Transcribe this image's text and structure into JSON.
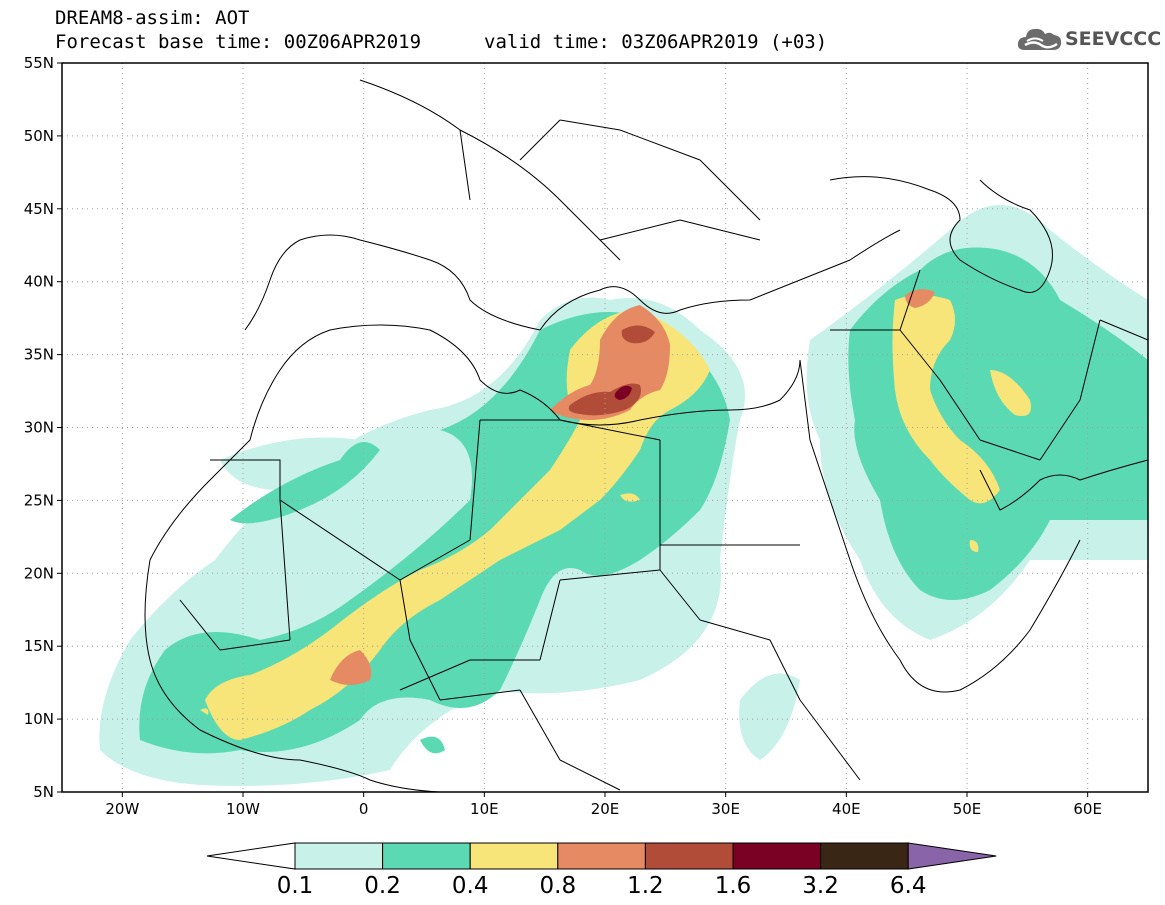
{
  "header": {
    "line1": "DREAM8-assim: AOT",
    "line2": "Forecast base time: 00Z06APR2019",
    "valid": "valid time: 03Z06APR2019 (+03)",
    "logo_text": "SEEVCCC",
    "logo_icon": "cloud-icon"
  },
  "map": {
    "lat_labels": [
      "55N",
      "50N",
      "45N",
      "40N",
      "35N",
      "30N",
      "25N",
      "20N",
      "15N",
      "10N",
      "5N"
    ],
    "lon_labels": [
      "20W",
      "10W",
      "0",
      "10E",
      "20E",
      "30E",
      "40E",
      "50E",
      "60E"
    ],
    "lat_range": [
      5,
      55
    ],
    "lon_range": [
      -25,
      65
    ],
    "grid": "dotted",
    "background": "#ffffff",
    "border_color": "#000000"
  },
  "colorbar": {
    "labels": [
      "0.1",
      "0.2",
      "0.4",
      "0.8",
      "1.2",
      "1.6",
      "3.2",
      "6.4"
    ],
    "colors": [
      "#ffffff",
      "#c8f1ea",
      "#5ad9b2",
      "#f7e57a",
      "#e68a64",
      "#b04c38",
      "#7a0024",
      "#3a2614",
      "#8a64a8"
    ],
    "extend": "both"
  }
}
